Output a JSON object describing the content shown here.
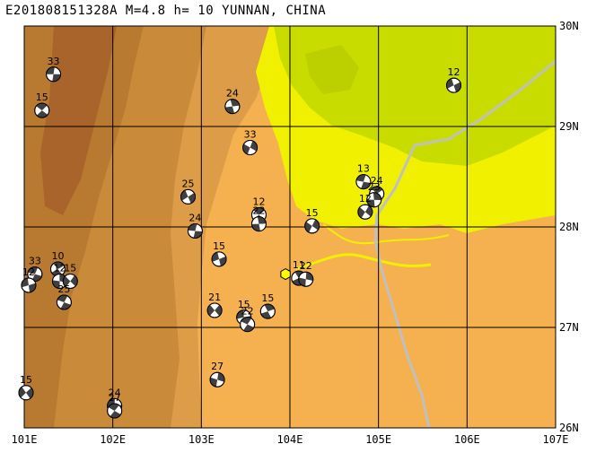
{
  "header": {
    "title": "E201808151328A  M=4.8  h= 10 YUNNAN, CHINA"
  },
  "map": {
    "lon_range": [
      101,
      107
    ],
    "lat_range": [
      26,
      30
    ],
    "x_labels": [
      "101E",
      "102E",
      "103E",
      "104E",
      "105E",
      "106E",
      "107E"
    ],
    "y_labels": [
      "30N",
      "29N",
      "28N",
      "27N",
      "26N"
    ],
    "colors": {
      "terrain_dark": "#b06a28",
      "terrain_mid": "#c98a3a",
      "terrain_light": "#e3a552",
      "lowland": "#f5b050",
      "basin_yellow": "#f0f000",
      "basin_green": "#c8dc00",
      "border_line": "#c0c0c0",
      "grid": "#000000",
      "epicenter": "#ffff00"
    },
    "epicenter": {
      "lon": 103.95,
      "lat": 27.53
    },
    "events": [
      {
        "label": "33",
        "lon": 101.33,
        "lat": 29.52
      },
      {
        "label": "15",
        "lon": 101.2,
        "lat": 29.16
      },
      {
        "label": "24",
        "lon": 103.35,
        "lat": 29.2
      },
      {
        "label": "33",
        "lon": 103.55,
        "lat": 28.79
      },
      {
        "label": "25",
        "lon": 102.85,
        "lat": 28.3
      },
      {
        "label": "24",
        "lon": 102.93,
        "lat": 27.96
      },
      {
        "label": "12",
        "lon": 103.65,
        "lat": 28.12
      },
      {
        "label": "22",
        "lon": 103.65,
        "lat": 28.03
      },
      {
        "label": "15",
        "lon": 104.25,
        "lat": 28.01
      },
      {
        "label": "12",
        "lon": 105.85,
        "lat": 29.41
      },
      {
        "label": "13",
        "lon": 104.83,
        "lat": 28.45
      },
      {
        "label": "24",
        "lon": 104.98,
        "lat": 28.33
      },
      {
        "label": "23",
        "lon": 104.95,
        "lat": 28.27
      },
      {
        "label": "12",
        "lon": 104.85,
        "lat": 28.15
      },
      {
        "label": "15",
        "lon": 103.2,
        "lat": 27.68
      },
      {
        "label": "33",
        "lon": 101.12,
        "lat": 27.53
      },
      {
        "label": "10",
        "lon": 101.38,
        "lat": 27.58
      },
      {
        "label": "12",
        "lon": 101.4,
        "lat": 27.46
      },
      {
        "label": "15",
        "lon": 101.52,
        "lat": 27.46
      },
      {
        "label": "12",
        "lon": 101.05,
        "lat": 27.42
      },
      {
        "label": "25",
        "lon": 101.45,
        "lat": 27.25
      },
      {
        "label": "11",
        "lon": 104.1,
        "lat": 27.49
      },
      {
        "label": "22",
        "lon": 104.18,
        "lat": 27.48
      },
      {
        "label": "21",
        "lon": 103.15,
        "lat": 27.17
      },
      {
        "label": "15",
        "lon": 103.48,
        "lat": 27.1
      },
      {
        "label": "22",
        "lon": 103.52,
        "lat": 27.03
      },
      {
        "label": "15",
        "lon": 103.75,
        "lat": 27.16
      },
      {
        "label": "27",
        "lon": 103.18,
        "lat": 26.48
      },
      {
        "label": "15",
        "lon": 101.02,
        "lat": 26.35
      },
      {
        "label": "24",
        "lon": 102.02,
        "lat": 26.22
      },
      {
        "label": "27",
        "lon": 102.02,
        "lat": 26.17
      }
    ]
  }
}
